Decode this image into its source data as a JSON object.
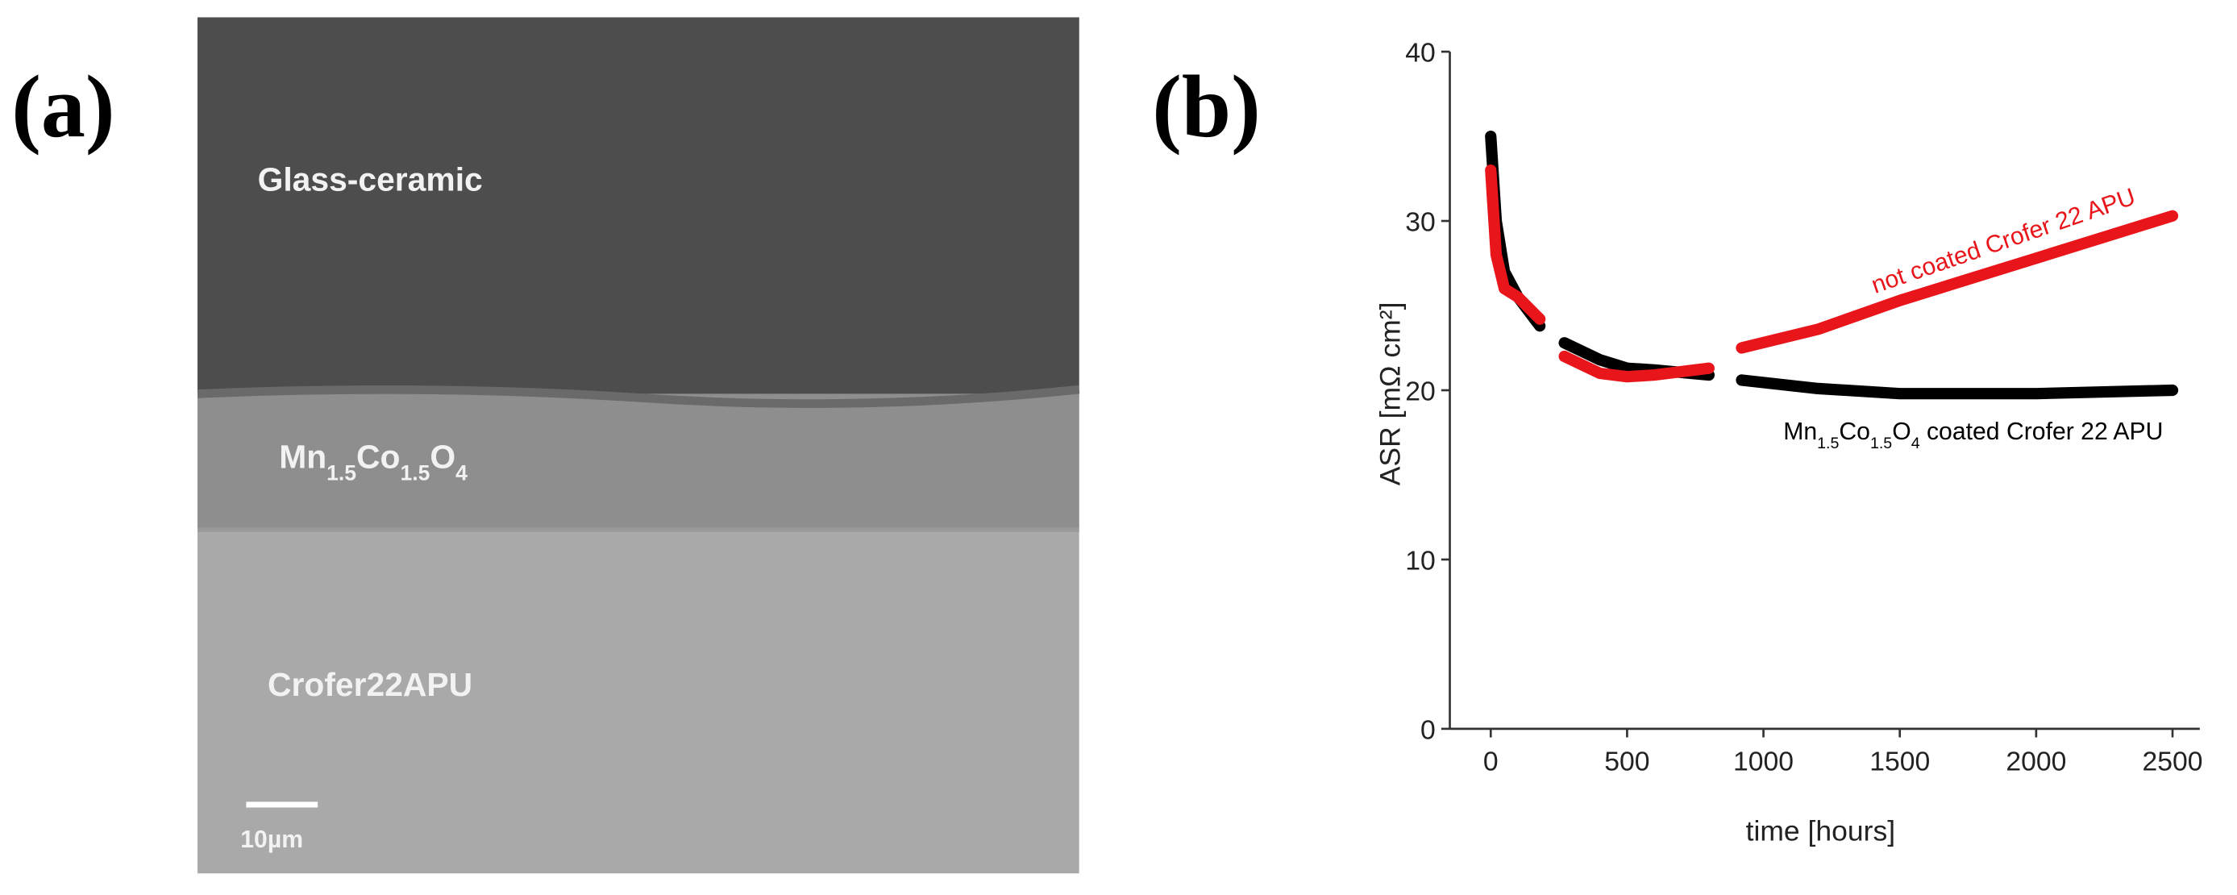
{
  "panel_a": {
    "label": "(a)",
    "layers": [
      "Glass-ceramic",
      "Mn1.5Co1.5O4",
      "Crofer22APU"
    ],
    "scale_bar": "10µm"
  },
  "chart_data": {
    "type": "line",
    "panel_label": "(b)",
    "x_label": "time [hours]",
    "y_label": "ASR [mΩ cm²]",
    "x": [
      0,
      20,
      50,
      100,
      180,
      220,
      270,
      400,
      500,
      600,
      800,
      860,
      920,
      1200,
      1500,
      2000,
      2500
    ],
    "series": [
      {
        "name": "Mn1.5Co1.5O4 coated Crofer 22 APU",
        "color": "#000000",
        "values": [
          35,
          30,
          27,
          25.5,
          23.8,
          null,
          22.8,
          21.8,
          21.3,
          21.2,
          20.9,
          null,
          20.6,
          20.1,
          19.8,
          19.8,
          20.0
        ]
      },
      {
        "name": "not coated Crofer 22 APU",
        "color": "#e8151b",
        "values": [
          33,
          28,
          26,
          25.5,
          24.2,
          null,
          22,
          21,
          20.8,
          20.9,
          21.3,
          null,
          22.5,
          23.6,
          25.3,
          27.8,
          30.3
        ]
      }
    ],
    "xlim": [
      -150,
      2600
    ],
    "ylim": [
      0,
      40
    ],
    "xticks": [
      0,
      500,
      1000,
      1500,
      2000,
      2500
    ],
    "yticks": [
      0,
      10,
      20,
      30,
      40
    ],
    "grid": false
  }
}
